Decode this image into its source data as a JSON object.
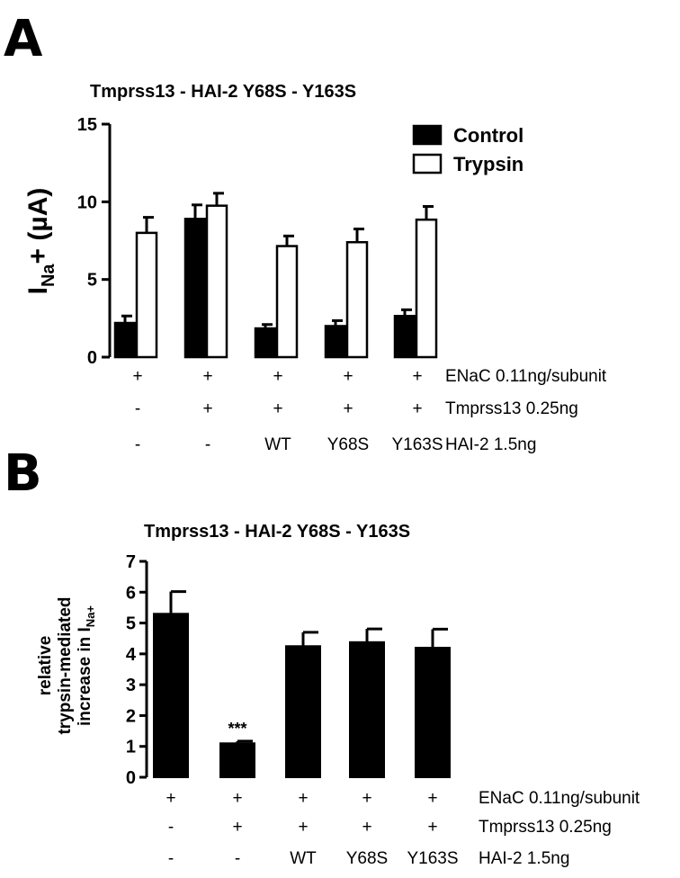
{
  "chart_data": [
    {
      "panel": "A",
      "type": "bar",
      "title": "Tmprss13 - HAI-2 Y68S - Y163S",
      "ylabel_main": "I",
      "ylabel_sub": "Na",
      "ylabel_rest": "+ (µA)",
      "ylim": [
        0,
        15
      ],
      "yticks": [
        "0",
        "5",
        "10",
        "15"
      ],
      "legend": {
        "position": "top-right"
      },
      "series": [
        {
          "name": "Control",
          "fill": "#000000",
          "values": [
            2.2,
            8.9,
            1.85,
            2.0,
            2.65
          ],
          "errors": [
            0.45,
            0.9,
            0.25,
            0.35,
            0.4
          ]
        },
        {
          "name": "Trypsin",
          "fill": "#ffffff",
          "values": [
            8.0,
            9.75,
            7.15,
            7.4,
            8.85
          ],
          "errors": [
            1.0,
            0.8,
            0.65,
            0.85,
            0.85
          ]
        }
      ],
      "conditions": [
        {
          "label": "ENaC 0.11ng/subunit",
          "values": [
            "+",
            "+",
            "+",
            "+",
            "+"
          ]
        },
        {
          "label": "Tmprss13 0.25ng",
          "values": [
            "-",
            "+",
            "+",
            "+",
            "+"
          ]
        },
        {
          "label": "HAI-2 1.5ng",
          "values": [
            "-",
            "-",
            "WT",
            "Y68S",
            "Y163S"
          ]
        }
      ]
    },
    {
      "panel": "B",
      "type": "bar",
      "title": "Tmprss13 - HAI-2 Y68S - Y163S",
      "ylabel_lines": [
        "relative",
        "trypsin-mediated",
        "increase in I"
      ],
      "ylabel_sub": "Na+",
      "ylim": [
        0,
        7
      ],
      "yticks": [
        "0",
        "1",
        "2",
        "3",
        "4",
        "5",
        "6",
        "7"
      ],
      "series": [
        {
          "fill": "#000000",
          "values": [
            5.3,
            1.1,
            4.25,
            4.38,
            4.2
          ],
          "errors": [
            0.72,
            0.07,
            0.45,
            0.43,
            0.6
          ]
        }
      ],
      "annotations": [
        {
          "index": 1,
          "text": "***"
        }
      ],
      "conditions": [
        {
          "label": "ENaC 0.11ng/subunit",
          "values": [
            "+",
            "+",
            "+",
            "+",
            "+"
          ]
        },
        {
          "label": "Tmprss13 0.25ng",
          "values": [
            "-",
            "+",
            "+",
            "+",
            "+"
          ]
        },
        {
          "label": "HAI-2 1.5ng",
          "values": [
            "-",
            "-",
            "WT",
            "Y68S",
            "Y163S"
          ]
        }
      ]
    }
  ],
  "panel_letters": [
    "A",
    "B"
  ]
}
